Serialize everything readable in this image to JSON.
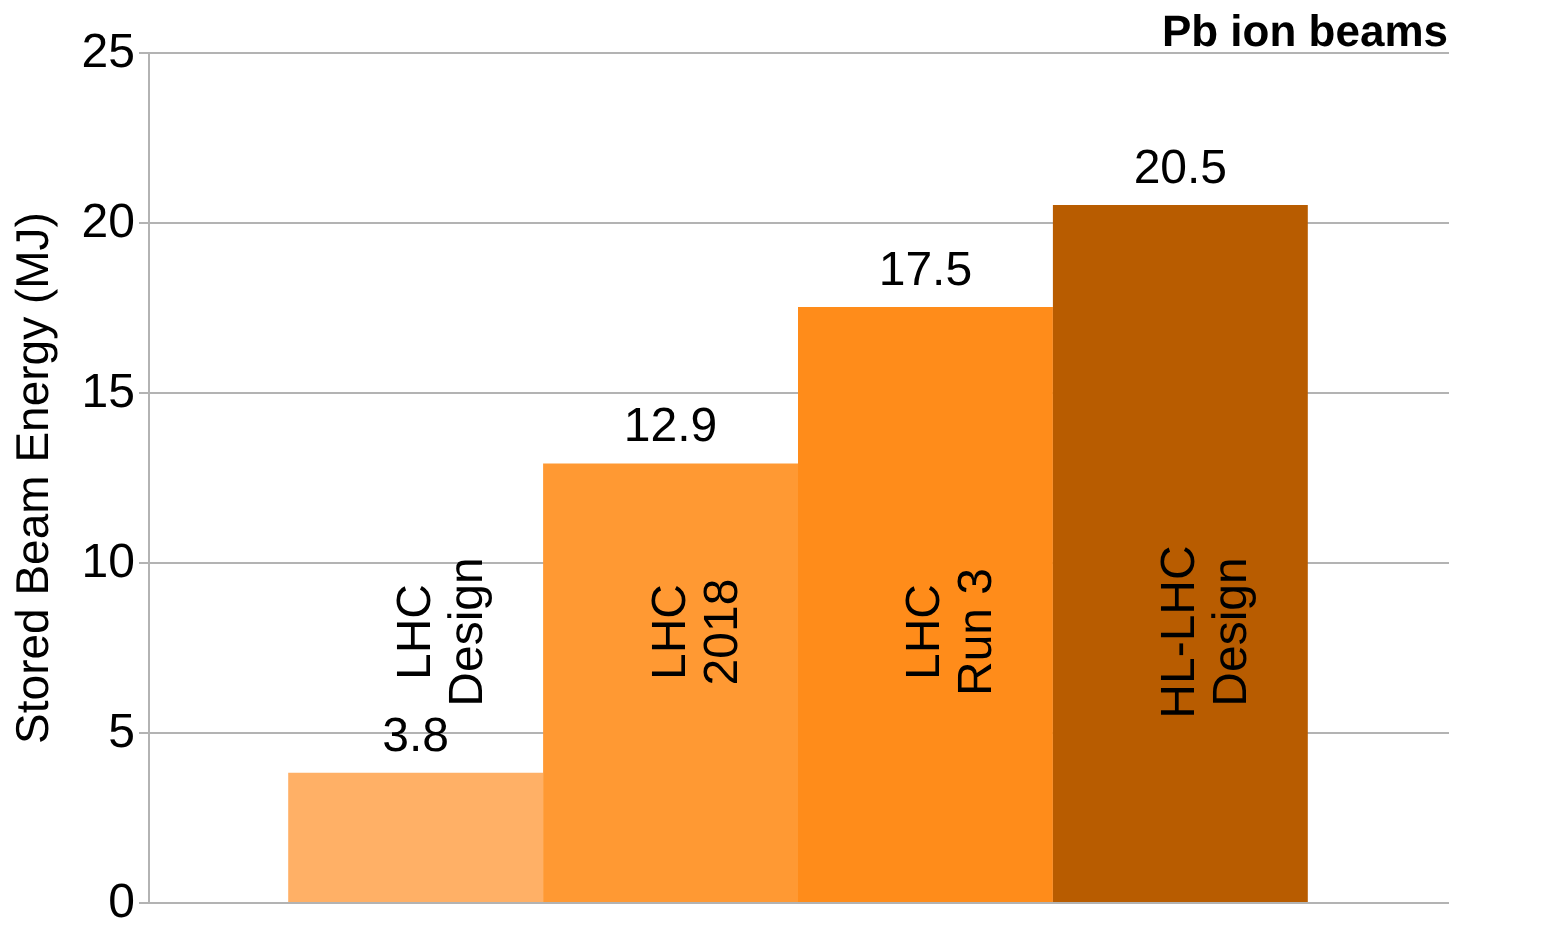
{
  "chart_data": {
    "type": "bar",
    "title": "Pb ion beams",
    "ylabel": "Stored Beam Energy (MJ)",
    "categories": [
      "LHC\nDesign",
      "LHC\n2018",
      "LHC\nRun 3",
      "HL-LHC\nDesign"
    ],
    "values": [
      3.8,
      12.9,
      17.5,
      20.5
    ],
    "colors": [
      "#ffb066",
      "#ff9933",
      "#ff8c1a",
      "#b85c00"
    ],
    "ylim": [
      0,
      25
    ],
    "yticks": [
      0,
      5,
      10,
      15,
      20,
      25
    ],
    "grid": "y",
    "data_labels": true,
    "tick_labels": "y"
  }
}
